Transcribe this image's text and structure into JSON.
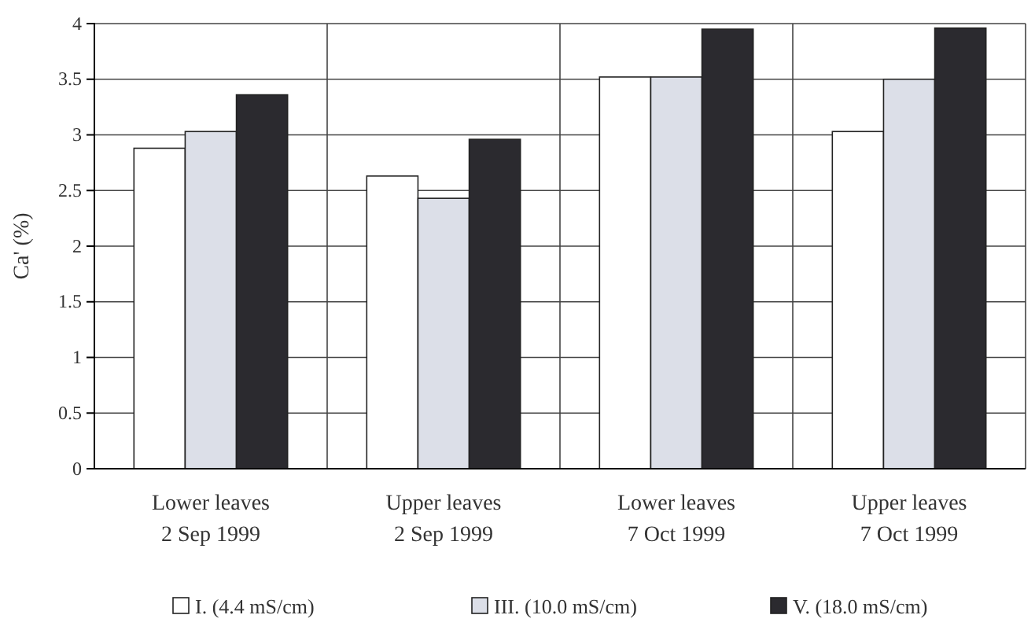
{
  "chart_data": {
    "type": "bar",
    "ylabel": "Ca' (%)",
    "categories": [
      "Lower leaves\n2 Sep 1999",
      "Upper leaves\n2 Sep 1999",
      "Lower leaves\n7 Oct 1999",
      "Upper leaves\n7 Oct 1999"
    ],
    "series": [
      {
        "name": "I. (4.4 mS/cm)",
        "color": "#ffffff",
        "values": [
          2.88,
          2.63,
          3.52,
          3.03
        ]
      },
      {
        "name": "III. (10.0 mS/cm)",
        "color": "#dcdfe8",
        "values": [
          3.03,
          2.43,
          3.52,
          3.5
        ]
      },
      {
        "name": "V. (18.0 mS/cm)",
        "color": "#2b2a2f",
        "values": [
          3.36,
          2.96,
          3.95,
          3.96
        ]
      }
    ],
    "ylim": [
      0,
      4
    ],
    "yticks": [
      0,
      0.5,
      1,
      1.5,
      2,
      2.5,
      3,
      3.5,
      4
    ],
    "grid": true,
    "legend": "bottom"
  }
}
